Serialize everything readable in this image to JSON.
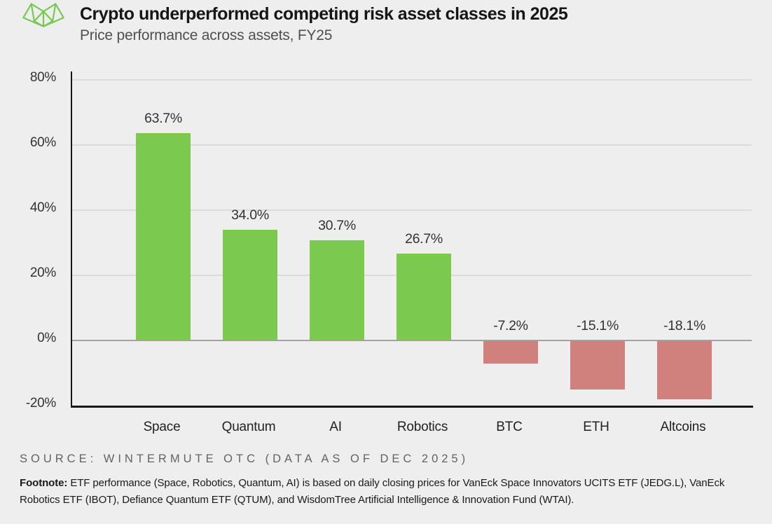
{
  "header": {
    "logo": "wintermute-logo",
    "title": "Crypto underperformed competing risk asset classes in 2025",
    "subtitle": "Price performance across assets, FY25"
  },
  "chart_data": {
    "type": "bar",
    "title": "Crypto underperformed competing risk asset classes in 2025",
    "subtitle": "Price performance across assets, FY25",
    "categories": [
      "Space",
      "Quantum",
      "AI",
      "Robotics",
      "BTC",
      "ETH",
      "Altcoins"
    ],
    "values": [
      63.7,
      34.0,
      30.7,
      26.7,
      -7.2,
      -15.1,
      -18.1
    ],
    "value_labels": [
      "63.7%",
      "34.0%",
      "30.7%",
      "26.7%",
      "-7.2%",
      "-15.1%",
      "-18.1%"
    ],
    "xlabel": "",
    "ylabel": "",
    "ylim": [
      -20,
      80
    ],
    "yticks": [
      80,
      60,
      40,
      20,
      0,
      -20
    ],
    "ytick_labels": [
      "80%",
      "60%",
      "40%",
      "20%",
      "0%",
      "-20%"
    ],
    "grid": true,
    "legend": false,
    "positive_color": "#7bc94e",
    "negative_color": "#d1817d",
    "gridline_color": "#dbdbdc",
    "zeroline_color": "#a2a2a2",
    "axis_color": "#161616"
  },
  "footer": {
    "source": "SOURCE: WINTERMUTE OTC (DATA AS OF DEC 2025)",
    "footnote_label": "Footnote:",
    "footnote_text": " ETF performance (Space, Robotics, Quantum, AI) is based on daily closing prices for VanEck Space Innovators UCITS ETF (JEDG.L), VanEck Robotics ETF (IBOT), Defiance Quantum ETF (QTUM), and WisdomTree Artificial Intelligence & Innovation Fund (WTAI)."
  },
  "colors": {
    "background": "#eeeeee",
    "logo_green": "#76c84e",
    "title_text": "#161616",
    "subtitle_text": "#4f4f4f",
    "source_text": "#636363"
  }
}
